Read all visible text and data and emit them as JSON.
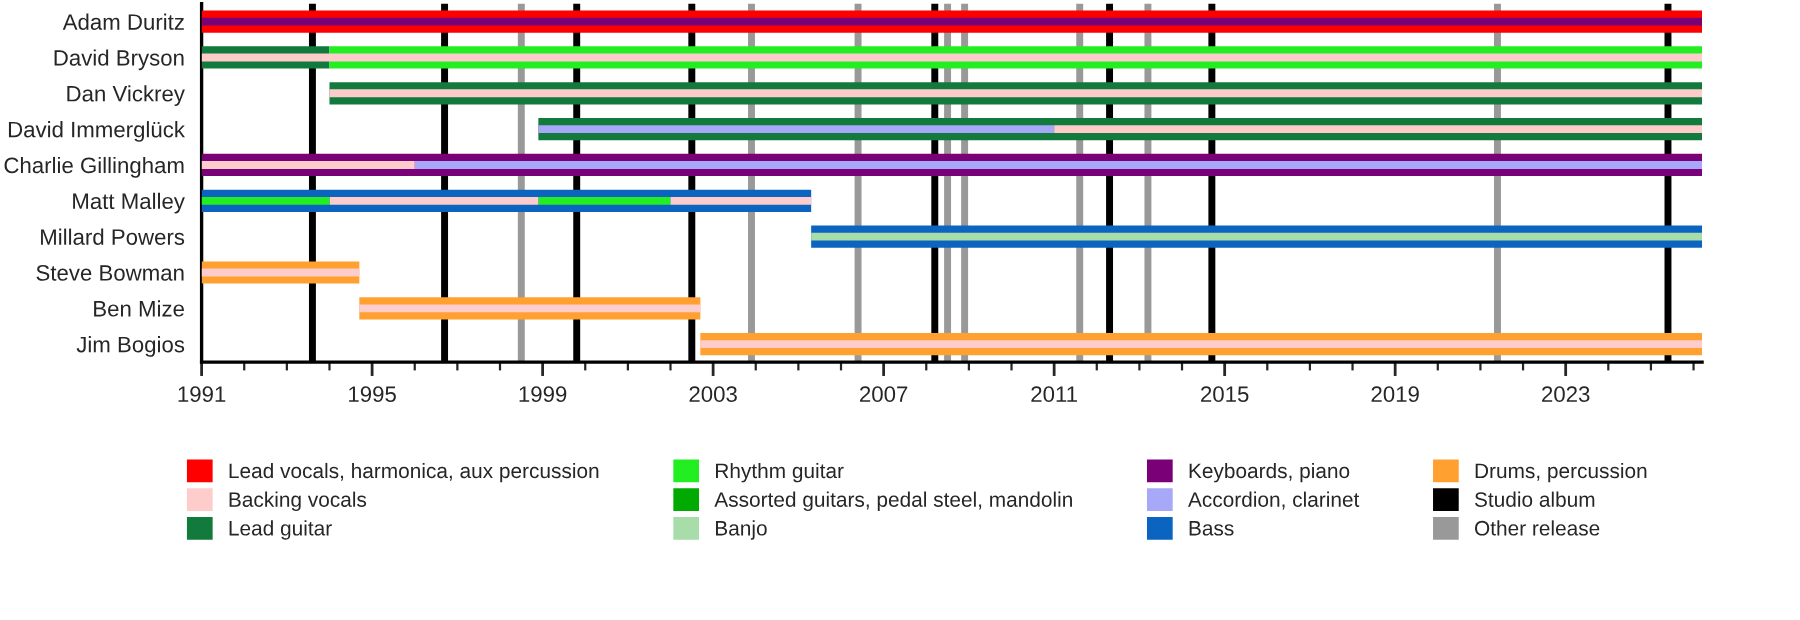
{
  "chart_data": {
    "type": "bar",
    "orientation": "horizontal",
    "categories": [
      "Adam Duritz",
      "David Bryson",
      "Dan Vickrey",
      "David Immerglück",
      "Charlie Gillingham",
      "Matt Malley",
      "Millard Powers",
      "Steve Bowman",
      "Ben Mize",
      "Jim Bogios"
    ],
    "series": [
      {
        "color": "#7a0077",
        "base": [
          1991,
          null,
          null,
          null,
          null,
          null,
          null,
          null,
          null,
          null
        ],
        "values": [
          35.2,
          null,
          null,
          null,
          null,
          null,
          null,
          null,
          null,
          null
        ]
      },
      {
        "color": "#a8a8f8",
        "base": [
          null,
          null,
          null,
          null,
          1996.0,
          null,
          null,
          null,
          null,
          null
        ],
        "values": [
          null,
          null,
          null,
          null,
          30.2,
          null,
          null,
          null,
          null,
          null
        ]
      },
      {
        "color": "#22ee22",
        "base": [
          null,
          null,
          null,
          null,
          null,
          1998.9,
          null,
          null,
          null,
          null
        ],
        "values": [
          null,
          null,
          null,
          null,
          null,
          3.1,
          null,
          null,
          null,
          null
        ]
      },
      {
        "color": "#ffcccc",
        "base": [
          null,
          null,
          null,
          null,
          null,
          2002.0,
          null,
          null,
          null,
          null
        ],
        "values": [
          null,
          null,
          null,
          null,
          null,
          3.3,
          null,
          null,
          null,
          null
        ]
      },
      {
        "name": "Lead vocals, harmonica, aux percussion",
        "color": "#ff0000",
        "base": [
          1991,
          null,
          null,
          null,
          null,
          null,
          null,
          null,
          null,
          null
        ],
        "values": [
          35.2,
          null,
          null,
          null,
          null,
          null,
          null,
          null,
          null,
          null
        ]
      },
      {
        "name": "Backing vocals",
        "color": "#ffcccc",
        "base": [
          null,
          1991,
          1994,
          2011.0,
          1991,
          1994,
          null,
          1991,
          1994.7,
          2002.7
        ],
        "values": [
          null,
          35.2,
          32.2,
          15.2,
          5.0,
          4.9,
          null,
          3.7,
          8.0,
          23.5
        ]
      },
      {
        "name": "Lead guitar",
        "color": "#117a3c",
        "base": [
          null,
          1991,
          1994,
          null,
          null,
          null,
          null,
          null,
          null,
          null
        ],
        "values": [
          null,
          3.0,
          32.2,
          null,
          null,
          null,
          null,
          null,
          null,
          null
        ]
      },
      {
        "name": "Rhythm guitar",
        "color": "#22ee22",
        "base": [
          null,
          1994,
          null,
          null,
          null,
          1991,
          null,
          null,
          null,
          null
        ],
        "values": [
          null,
          32.2,
          null,
          null,
          null,
          3.0,
          null,
          null,
          null,
          null
        ]
      },
      {
        "name": "Assorted guitars, pedal steel, mandolin",
        "color": "#00aa00",
        "values": [
          null,
          null,
          null,
          null,
          null,
          null,
          null,
          null,
          null,
          null
        ]
      },
      {
        "name": "Banjo",
        "color": "#a8dca8",
        "base": [
          null,
          null,
          null,
          null,
          null,
          null,
          2005.3,
          null,
          null,
          null
        ],
        "values": [
          null,
          null,
          null,
          null,
          null,
          null,
          20.9,
          null,
          null,
          null
        ]
      },
      {
        "name": "Keyboards, piano",
        "color": "#7a0077",
        "base": [
          null,
          null,
          null,
          null,
          1991,
          null,
          null,
          null,
          null,
          null
        ],
        "values": [
          null,
          null,
          null,
          null,
          35.2,
          null,
          null,
          null,
          null,
          null
        ]
      },
      {
        "name": "Accordion, clarinet",
        "color": "#a8a8f8",
        "base": [
          null,
          null,
          null,
          1998.9,
          null,
          null,
          null,
          null,
          null,
          null
        ],
        "values": [
          null,
          null,
          null,
          12.1,
          null,
          null,
          null,
          null,
          null,
          null
        ]
      },
      {
        "name": "Bass",
        "color": "#0a64c0",
        "base": [
          null,
          null,
          null,
          null,
          null,
          1991,
          2005.3,
          null,
          null,
          null
        ],
        "values": [
          null,
          null,
          null,
          null,
          null,
          14.3,
          20.9,
          null,
          null,
          null
        ]
      },
      {
        "name": "Drums, percussion",
        "color": "#ffa030",
        "base": [
          null,
          null,
          null,
          null,
          null,
          null,
          null,
          1991,
          1994.7,
          2002.7
        ],
        "values": [
          null,
          null,
          null,
          null,
          null,
          null,
          null,
          3.7,
          8.0,
          23.5
        ]
      },
      {
        "color": "#117a3c",
        "base": [
          null,
          null,
          null,
          1998.9,
          null,
          null,
          null,
          null,
          null,
          null
        ],
        "values": [
          null,
          null,
          null,
          27.3,
          null,
          null,
          null,
          null,
          null,
          null
        ]
      }
    ],
    "xlim": [
      1991,
      2026.2
    ],
    "xticks": [
      1991,
      1995,
      1999,
      2003,
      2007,
      2011,
      2015,
      2019,
      2023
    ],
    "ref_lines": [
      {
        "axis": "x",
        "value": 1993.6,
        "label": "Studio album",
        "color": "#000000"
      },
      {
        "axis": "x",
        "value": 1996.7,
        "color": "#000000"
      },
      {
        "axis": "x",
        "value": 1999.8,
        "color": "#000000"
      },
      {
        "axis": "x",
        "value": 2002.5,
        "color": "#000000"
      },
      {
        "axis": "x",
        "value": 2008.2,
        "color": "#000000"
      },
      {
        "axis": "x",
        "value": 2012.3,
        "color": "#000000"
      },
      {
        "axis": "x",
        "value": 2014.7,
        "color": "#000000"
      },
      {
        "axis": "x",
        "value": 2025.4,
        "color": "#000000"
      },
      {
        "axis": "x",
        "value": 1998.5,
        "label": "Other release",
        "color": "#999999"
      },
      {
        "axis": "x",
        "value": 2003.9,
        "color": "#999999"
      },
      {
        "axis": "x",
        "value": 2006.4,
        "color": "#999999"
      },
      {
        "axis": "x",
        "value": 2008.5,
        "color": "#999999"
      },
      {
        "axis": "x",
        "value": 2008.9,
        "color": "#999999"
      },
      {
        "axis": "x",
        "value": 2011.6,
        "color": "#999999"
      },
      {
        "axis": "x",
        "value": 2013.2,
        "color": "#999999"
      },
      {
        "axis": "x",
        "value": 2021.4,
        "color": "#999999"
      }
    ],
    "legend": "bottom"
  }
}
